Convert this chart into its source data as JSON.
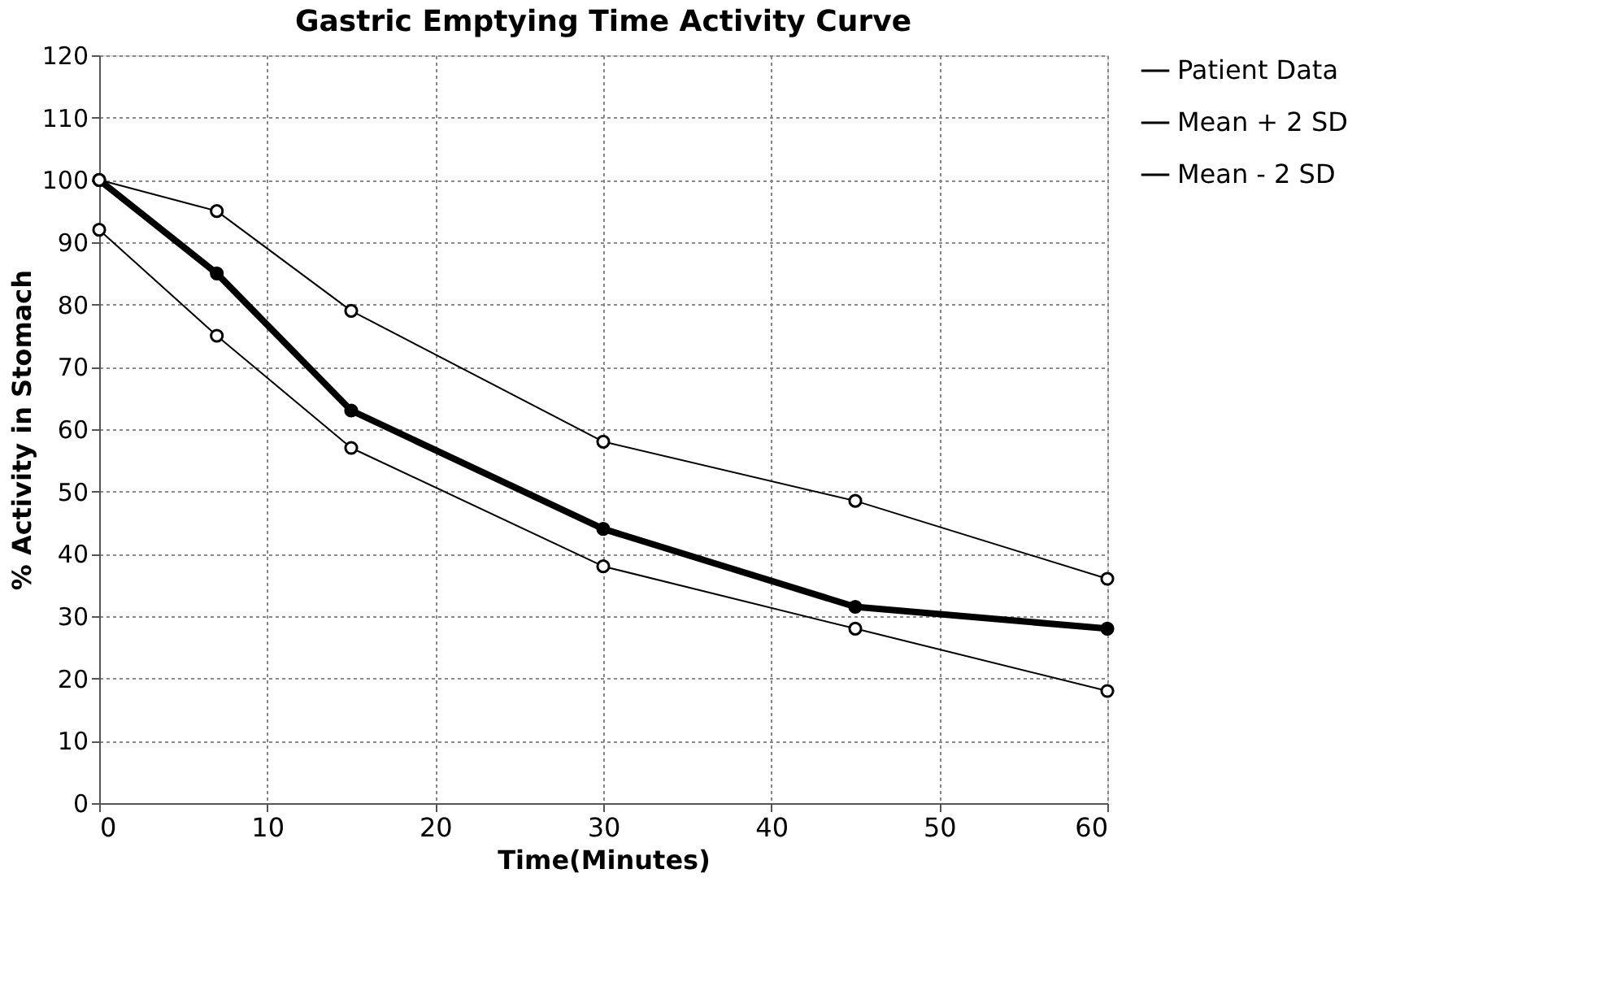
{
  "chart_data": {
    "type": "line",
    "title": "Gastric Emptying Time Activity Curve",
    "xlabel": "Time(Minutes)",
    "ylabel": "% Activity in Stomach",
    "x": [
      0,
      7,
      15,
      30,
      45,
      60
    ],
    "series": [
      {
        "name": "Patient Data",
        "color": "#000000",
        "values": [
          100,
          85,
          63,
          44,
          31.5,
          28
        ]
      },
      {
        "name": "Mean + 2 SD",
        "color": "#000000",
        "values": [
          100,
          95,
          79,
          58,
          48.5,
          36
        ]
      },
      {
        "name": "Mean - 2 SD",
        "color": "#000000",
        "values": [
          92,
          75,
          57,
          38,
          28,
          18
        ]
      }
    ],
    "xlim": [
      0,
      60
    ],
    "xticks": [
      0,
      10,
      20,
      30,
      40,
      50,
      60
    ],
    "ylim": [
      0,
      120
    ],
    "yticks": [
      0,
      10,
      20,
      30,
      40,
      50,
      60,
      70,
      80,
      90,
      100,
      110,
      120
    ],
    "grid": true,
    "legend": "right",
    "marker": "circle",
    "line_style": "solid"
  }
}
